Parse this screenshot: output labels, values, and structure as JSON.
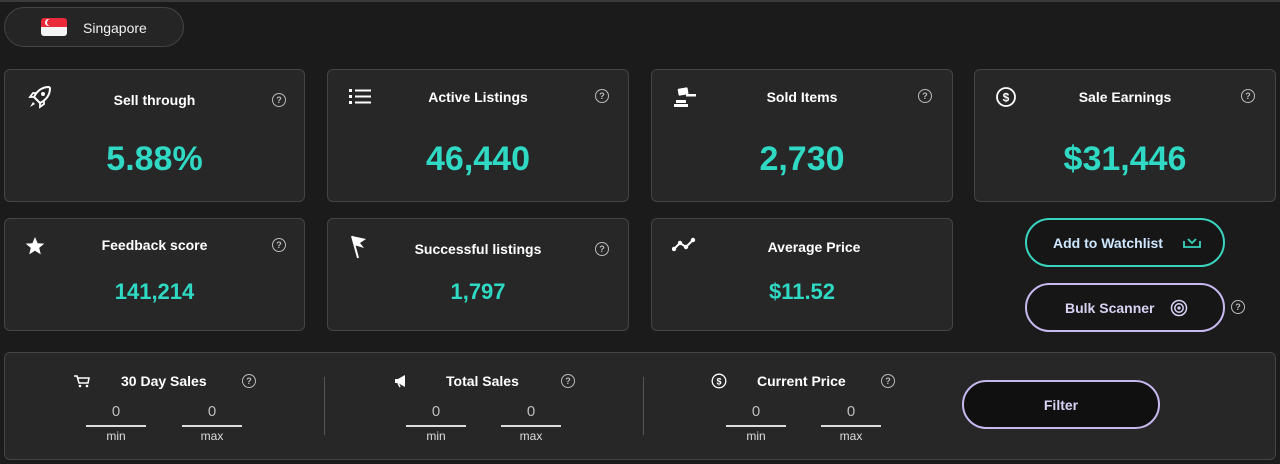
{
  "region": {
    "country": "Singapore",
    "flag_icon": "singapore-flag-icon"
  },
  "stats": {
    "sell_through": {
      "label": "Sell through",
      "value": "5.88%",
      "icon": "rocket-icon"
    },
    "active_listings": {
      "label": "Active Listings",
      "value": "46,440",
      "icon": "list-icon"
    },
    "sold_items": {
      "label": "Sold Items",
      "value": "2,730",
      "icon": "gavel-icon"
    },
    "sale_earnings": {
      "label": "Sale Earnings",
      "value": "$31,446",
      "icon": "dollar-circle-icon"
    },
    "feedback_score": {
      "label": "Feedback score",
      "value": "141,214",
      "icon": "star-icon"
    },
    "successful_listings": {
      "label": "Successful listings",
      "value": "1,797",
      "icon": "flag-icon"
    },
    "average_price": {
      "label": "Average Price",
      "value": "$11.52",
      "icon": "trend-line-icon"
    }
  },
  "help_glyph": "?",
  "actions": {
    "watchlist_label": "Add to Watchlist",
    "bulk_scanner_label": "Bulk Scanner"
  },
  "filters": {
    "day_sales": {
      "title": "30 Day Sales",
      "min_value": "0",
      "max_value": "0",
      "min_label": "min",
      "max_label": "max",
      "icon": "cart-icon"
    },
    "total_sales": {
      "title": "Total Sales",
      "min_value": "0",
      "max_value": "0",
      "min_label": "min",
      "max_label": "max",
      "icon": "megaphone-icon"
    },
    "current_price": {
      "title": "Current Price",
      "min_value": "0",
      "max_value": "0",
      "min_label": "min",
      "max_label": "max",
      "icon": "dollar-circle-icon"
    },
    "filter_button": "Filter"
  },
  "colors": {
    "accent_teal": "#2fd9c4",
    "accent_lavender": "#c8b8f0",
    "background": "#1b1b1b",
    "card": "#272727"
  }
}
